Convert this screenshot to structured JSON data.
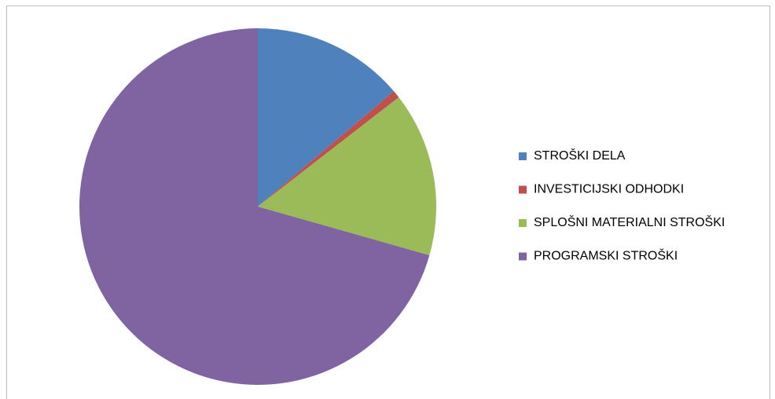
{
  "chart_data": {
    "type": "pie",
    "categories": [
      "STROŠKI DELA",
      "INVESTICIJSKI ODHODKI",
      "SPLOŠNI MATERIALNI STROŠKI",
      "PROGRAMSKI STROŠKI"
    ],
    "values": [
      13.8,
      0.7,
      14.9,
      70.6
    ],
    "colors": [
      "#4f81bd",
      "#c0504d",
      "#9bbb59",
      "#8064a2"
    ],
    "legend": "right"
  }
}
